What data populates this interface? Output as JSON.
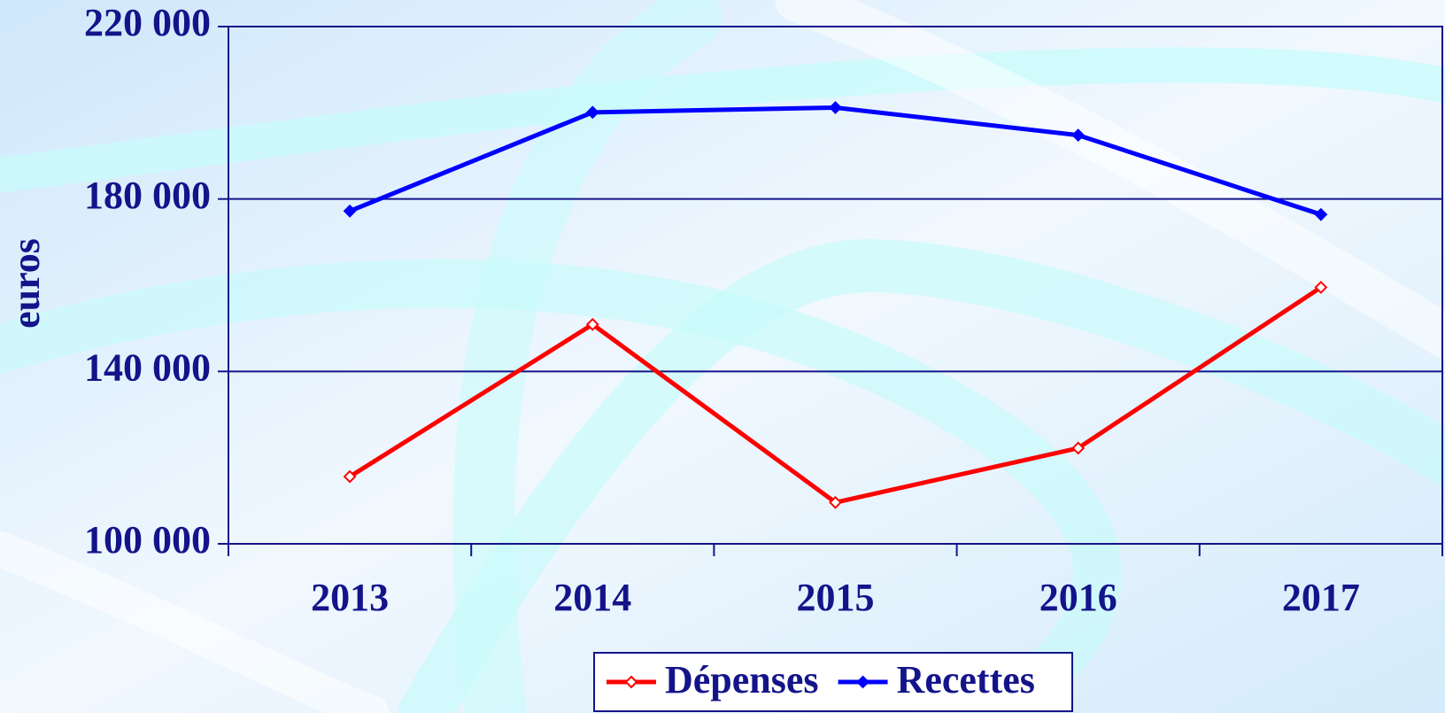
{
  "chart_data": {
    "type": "line",
    "y_label": "euros",
    "categories": [
      "2013",
      "2014",
      "2015",
      "2016",
      "2017"
    ],
    "series": [
      {
        "name": "Dépenses",
        "color": "#ff0000",
        "values": [
          115600,
          150900,
          109600,
          122200,
          159500
        ]
      },
      {
        "name": "Recettes",
        "color": "#0000ff",
        "values": [
          177200,
          200100,
          201200,
          194800,
          176400
        ]
      }
    ],
    "ylim": [
      100000,
      220000
    ],
    "yticks": [
      {
        "value": 100000,
        "label": "100 000"
      },
      {
        "value": 140000,
        "label": "140 000"
      },
      {
        "value": 180000,
        "label": "180 000"
      },
      {
        "value": 220000,
        "label": "220 000"
      }
    ],
    "grid": true,
    "legend": "bottom"
  }
}
